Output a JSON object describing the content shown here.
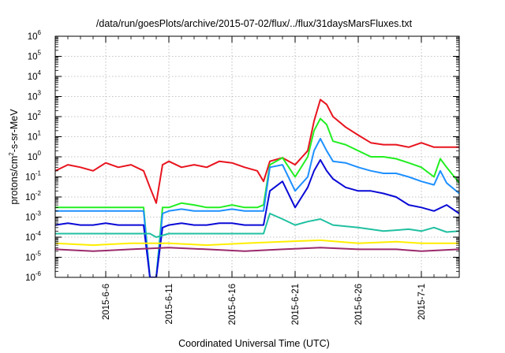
{
  "chart_data": {
    "type": "line",
    "title": "/data/run/goesPlots/archive/2015-07-02/flux/../flux/31daysMarsFluxes.txt",
    "xlabel": "Coordinated Universal Time (UTC)",
    "ylabel": "protons/cm²-s-sr-MeV",
    "ylabel_parts": {
      "base": "protons/cm",
      "sup": "2",
      "rest": "-s-sr-MeV"
    },
    "x_range": [
      "2015-06-02",
      "2015-07-04"
    ],
    "yscale": "log",
    "ylim": [
      1e-06,
      1000000.0
    ],
    "grid": true,
    "legend": "none",
    "x_ticks": [
      {
        "date": "2015-06-06",
        "label": "2015-6-6"
      },
      {
        "date": "2015-06-11",
        "label": "2015-6-11"
      },
      {
        "date": "2015-06-16",
        "label": "2015-6-16"
      },
      {
        "date": "2015-06-21",
        "label": "2015-6-21"
      },
      {
        "date": "2015-06-26",
        "label": "2015-6-26"
      },
      {
        "date": "2015-07-01",
        "label": "2015-7-1"
      }
    ],
    "y_ticks": [
      {
        "value": 1e-06,
        "base": "10",
        "exp": "-6"
      },
      {
        "value": 1e-05,
        "base": "10",
        "exp": "-5"
      },
      {
        "value": 0.0001,
        "base": "10",
        "exp": "-4"
      },
      {
        "value": 0.001,
        "base": "10",
        "exp": "-3"
      },
      {
        "value": 0.01,
        "base": "10",
        "exp": "-2"
      },
      {
        "value": 0.1,
        "base": "10",
        "exp": "-1"
      },
      {
        "value": 1,
        "base": "10",
        "exp": "0"
      },
      {
        "value": 10,
        "base": "10",
        "exp": "1"
      },
      {
        "value": 100,
        "base": "10",
        "exp": "2"
      },
      {
        "value": 1000,
        "base": "10",
        "exp": "3"
      },
      {
        "value": 10000,
        "base": "10",
        "exp": "4"
      },
      {
        "value": 100000,
        "base": "10",
        "exp": "5"
      },
      {
        "value": 1000000,
        "base": "10",
        "exp": "6"
      }
    ],
    "series": [
      {
        "color": "#e8141e",
        "x": [
          "2015-06-02",
          "2015-06-03",
          "2015-06-04",
          "2015-06-05",
          "2015-06-06",
          "2015-06-07",
          "2015-06-08",
          "2015-06-09",
          "2015-06-09T12:00",
          "2015-06-10",
          "2015-06-10T12:00",
          "2015-06-11",
          "2015-06-12",
          "2015-06-13",
          "2015-06-14",
          "2015-06-15",
          "2015-06-16",
          "2015-06-17",
          "2015-06-18",
          "2015-06-18T12:00",
          "2015-06-19",
          "2015-06-20",
          "2015-06-21",
          "2015-06-22",
          "2015-06-22T12:00",
          "2015-06-23",
          "2015-06-23T12:00",
          "2015-06-24",
          "2015-06-25",
          "2015-06-26",
          "2015-06-27",
          "2015-06-28",
          "2015-06-29",
          "2015-06-30",
          "2015-07-01",
          "2015-07-02",
          "2015-07-03",
          "2015-07-04"
        ],
        "y": [
          0.2,
          0.4,
          0.3,
          0.2,
          0.5,
          0.3,
          0.4,
          0.2,
          0.03,
          0.005,
          0.4,
          0.6,
          0.3,
          0.4,
          0.3,
          0.6,
          0.5,
          0.3,
          0.2,
          0.06,
          0.6,
          0.9,
          0.4,
          2,
          60,
          700,
          400,
          100,
          30,
          12,
          5,
          4,
          4,
          3,
          5,
          3,
          3,
          3
        ]
      },
      {
        "color": "#22ee22",
        "x": [
          "2015-06-02",
          "2015-06-04",
          "2015-06-06",
          "2015-06-08",
          "2015-06-09",
          "2015-06-09T12:00",
          "2015-06-10",
          "2015-06-10T12:00",
          "2015-06-11",
          "2015-06-12",
          "2015-06-13",
          "2015-06-14",
          "2015-06-15",
          "2015-06-16",
          "2015-06-17",
          "2015-06-18",
          "2015-06-18T12:00",
          "2015-06-19",
          "2015-06-20",
          "2015-06-21",
          "2015-06-22",
          "2015-06-22T12:00",
          "2015-06-23",
          "2015-06-23T12:00",
          "2015-06-24",
          "2015-06-25",
          "2015-06-26",
          "2015-06-27",
          "2015-06-28",
          "2015-06-29",
          "2015-06-30",
          "2015-07-01",
          "2015-07-02",
          "2015-07-02T12:00",
          "2015-07-03",
          "2015-07-04"
        ],
        "y": [
          0.003,
          0.003,
          0.003,
          0.003,
          0.003,
          1e-06,
          1e-06,
          0.003,
          0.003,
          0.005,
          0.004,
          0.003,
          0.003,
          0.004,
          0.003,
          0.003,
          0.004,
          0.4,
          0.9,
          0.1,
          1,
          20,
          80,
          40,
          6,
          4,
          2,
          1,
          1,
          0.8,
          0.5,
          0.3,
          0.1,
          0.8,
          0.3,
          0.05
        ]
      },
      {
        "color": "#1e90ff",
        "x": [
          "2015-06-02",
          "2015-06-04",
          "2015-06-06",
          "2015-06-08",
          "2015-06-09",
          "2015-06-09T12:00",
          "2015-06-10",
          "2015-06-10T12:00",
          "2015-06-11",
          "2015-06-12",
          "2015-06-13",
          "2015-06-14",
          "2015-06-15",
          "2015-06-16",
          "2015-06-17",
          "2015-06-18",
          "2015-06-18T12:00",
          "2015-06-19",
          "2015-06-20",
          "2015-06-21",
          "2015-06-22",
          "2015-06-22T12:00",
          "2015-06-23",
          "2015-06-23T12:00",
          "2015-06-24",
          "2015-06-25",
          "2015-06-26",
          "2015-06-27",
          "2015-06-28",
          "2015-06-29",
          "2015-06-30",
          "2015-07-01",
          "2015-07-02",
          "2015-07-02T12:00",
          "2015-07-03",
          "2015-07-04"
        ],
        "y": [
          0.002,
          0.002,
          0.002,
          0.002,
          0.002,
          1e-06,
          1e-06,
          0.0015,
          0.002,
          0.0025,
          0.002,
          0.002,
          0.002,
          0.0025,
          0.002,
          0.002,
          0.002,
          0.3,
          0.4,
          0.02,
          0.1,
          2,
          8,
          2,
          0.6,
          0.5,
          0.3,
          0.2,
          0.15,
          0.15,
          0.1,
          0.06,
          0.04,
          0.2,
          0.05,
          0.015
        ]
      },
      {
        "color": "#0a0ad6",
        "x": [
          "2015-06-02",
          "2015-06-03",
          "2015-06-04",
          "2015-06-05",
          "2015-06-06",
          "2015-06-07",
          "2015-06-08",
          "2015-06-09",
          "2015-06-09T12:00",
          "2015-06-10",
          "2015-06-10T12:00",
          "2015-06-11",
          "2015-06-12",
          "2015-06-13",
          "2015-06-14",
          "2015-06-15",
          "2015-06-16",
          "2015-06-17",
          "2015-06-18",
          "2015-06-18T12:00",
          "2015-06-19",
          "2015-06-20",
          "2015-06-21",
          "2015-06-22",
          "2015-06-22T12:00",
          "2015-06-23",
          "2015-06-23T12:00",
          "2015-06-24",
          "2015-06-25",
          "2015-06-26",
          "2015-06-27",
          "2015-06-28",
          "2015-06-29",
          "2015-06-30",
          "2015-07-01",
          "2015-07-02",
          "2015-07-03",
          "2015-07-04"
        ],
        "y": [
          0.0004,
          0.0005,
          0.0004,
          0.0004,
          0.0005,
          0.0004,
          0.0004,
          0.0004,
          1e-06,
          1e-06,
          0.0003,
          0.0004,
          0.0005,
          0.0004,
          0.0004,
          0.0005,
          0.0005,
          0.0004,
          0.0004,
          0.0004,
          0.02,
          0.06,
          0.003,
          0.03,
          0.2,
          0.7,
          0.2,
          0.08,
          0.03,
          0.02,
          0.02,
          0.015,
          0.01,
          0.004,
          0.003,
          0.002,
          0.004,
          0.0015
        ]
      },
      {
        "color": "#20c0a0",
        "x": [
          "2015-06-02",
          "2015-06-05",
          "2015-06-08",
          "2015-06-09T12:00",
          "2015-06-10",
          "2015-06-11",
          "2015-06-14",
          "2015-06-17",
          "2015-06-18T12:00",
          "2015-06-19",
          "2015-06-20",
          "2015-06-21",
          "2015-06-22",
          "2015-06-23",
          "2015-06-24",
          "2015-06-26",
          "2015-06-28",
          "2015-06-30",
          "2015-07-01",
          "2015-07-02",
          "2015-07-03",
          "2015-07-04"
        ],
        "y": [
          0.00015,
          0.00015,
          0.00015,
          0.00015,
          0.0001,
          0.00015,
          0.00015,
          0.00015,
          0.00015,
          0.0015,
          0.0008,
          0.0004,
          0.0006,
          0.0008,
          0.0004,
          0.0003,
          0.0002,
          0.00025,
          0.0002,
          0.0003,
          0.00018,
          0.0002
        ]
      },
      {
        "color": "#ffee00",
        "x": [
          "2015-06-02",
          "2015-06-05",
          "2015-06-08",
          "2015-06-11",
          "2015-06-14",
          "2015-06-17",
          "2015-06-20",
          "2015-06-23",
          "2015-06-26",
          "2015-06-29",
          "2015-07-01",
          "2015-07-04"
        ],
        "y": [
          5e-05,
          4e-05,
          5e-05,
          5e-05,
          4e-05,
          5e-05,
          6e-05,
          7e-05,
          5e-05,
          6e-05,
          5e-05,
          5e-05
        ]
      },
      {
        "color": "#9b2a6b",
        "x": [
          "2015-06-02",
          "2015-06-05",
          "2015-06-08",
          "2015-06-11",
          "2015-06-14",
          "2015-06-17",
          "2015-06-20",
          "2015-06-23",
          "2015-06-26",
          "2015-06-29",
          "2015-07-01",
          "2015-07-04"
        ],
        "y": [
          2.5e-05,
          2e-05,
          2.5e-05,
          3e-05,
          2.5e-05,
          2e-05,
          2.5e-05,
          3e-05,
          2.5e-05,
          2.5e-05,
          2e-05,
          2.5e-05
        ]
      }
    ]
  }
}
